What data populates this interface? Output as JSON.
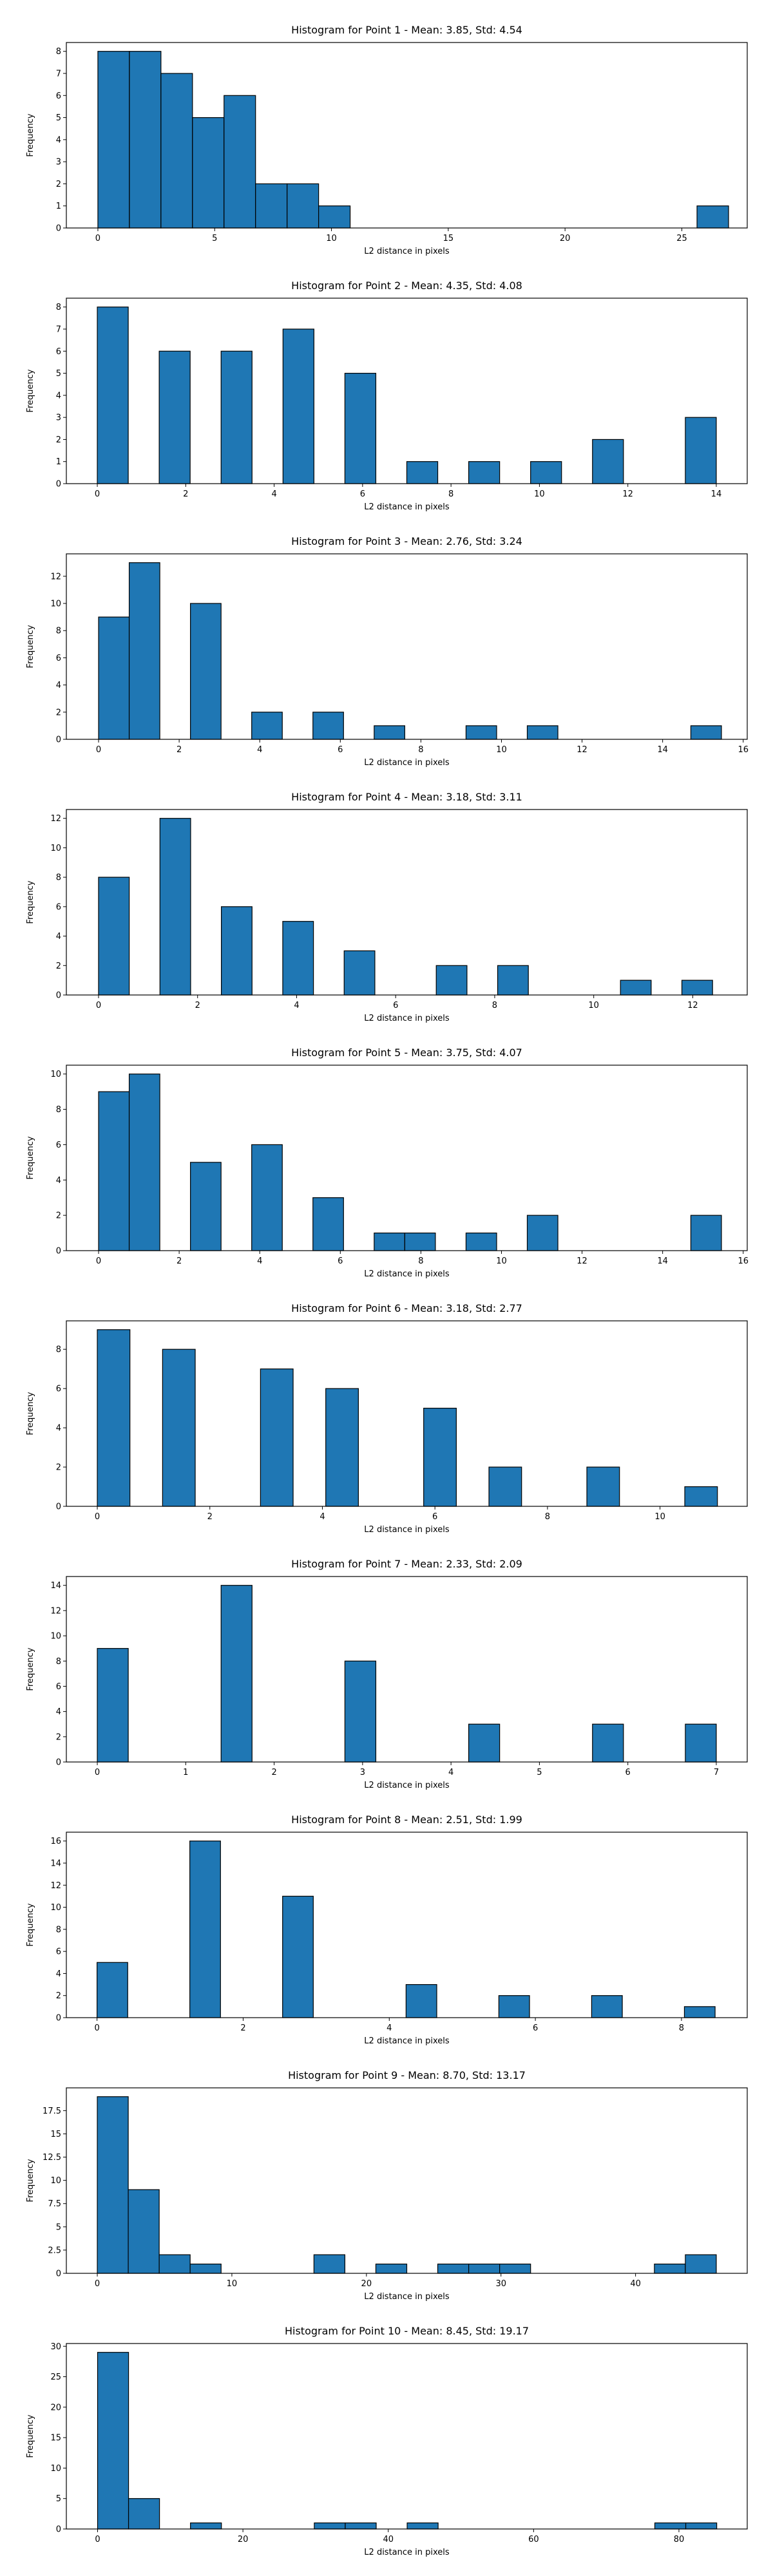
{
  "chart_data": [
    {
      "type": "bar",
      "title": "Histogram for Point 1 - Mean: 3.85, Std: 4.54",
      "xlabel": "L2 distance in pixels",
      "ylabel": "Frequency",
      "xlim": [
        -1.35,
        27.8
      ],
      "ylim": [
        0,
        8.4
      ],
      "xticks": [
        0,
        5,
        10,
        15,
        20,
        25
      ],
      "yticks": [
        0,
        1,
        2,
        3,
        4,
        5,
        6,
        7,
        8
      ],
      "bins": [
        [
          0,
          1.35,
          8
        ],
        [
          1.35,
          2.7,
          8
        ],
        [
          2.7,
          4.05,
          7
        ],
        [
          4.05,
          5.4,
          5
        ],
        [
          5.4,
          6.75,
          6
        ],
        [
          6.75,
          8.1,
          2
        ],
        [
          8.1,
          9.45,
          2
        ],
        [
          9.45,
          10.8,
          1
        ],
        [
          25.65,
          27.0,
          1
        ]
      ]
    },
    {
      "type": "bar",
      "title": "Histogram for Point 2 - Mean: 4.35, Std: 4.08",
      "xlabel": "L2 distance in pixels",
      "ylabel": "Frequency",
      "xlim": [
        -0.7,
        14.7
      ],
      "ylim": [
        0,
        8.4
      ],
      "xticks": [
        0,
        2,
        4,
        6,
        8,
        10,
        12,
        14
      ],
      "yticks": [
        0,
        1,
        2,
        3,
        4,
        5,
        6,
        7,
        8
      ],
      "bins": [
        [
          0,
          0.7,
          8
        ],
        [
          1.4,
          2.1,
          6
        ],
        [
          2.8,
          3.5,
          6
        ],
        [
          4.2,
          4.9,
          7
        ],
        [
          5.6,
          6.3,
          5
        ],
        [
          7.0,
          7.7,
          1
        ],
        [
          8.4,
          9.1,
          1
        ],
        [
          9.8,
          10.5,
          1
        ],
        [
          11.2,
          11.9,
          2
        ],
        [
          13.3,
          14.0,
          3
        ]
      ]
    },
    {
      "type": "bar",
      "title": "Histogram for Point 3 - Mean: 2.76, Std: 3.24",
      "xlabel": "L2 distance in pixels",
      "ylabel": "Frequency",
      "xlim": [
        -0.8,
        16.1
      ],
      "ylim": [
        0,
        13.65
      ],
      "xticks": [
        0,
        2,
        4,
        6,
        8,
        10,
        12,
        14,
        16
      ],
      "yticks": [
        0,
        2,
        4,
        6,
        8,
        10,
        12
      ],
      "bins": [
        [
          0,
          0.76,
          9
        ],
        [
          0.76,
          1.52,
          13
        ],
        [
          2.28,
          3.04,
          10
        ],
        [
          3.8,
          4.56,
          2
        ],
        [
          5.32,
          6.08,
          2
        ],
        [
          6.84,
          7.6,
          1
        ],
        [
          9.12,
          9.88,
          1
        ],
        [
          10.64,
          11.4,
          1
        ],
        [
          14.7,
          15.46,
          1
        ]
      ]
    },
    {
      "type": "bar",
      "title": "Histogram for Point 4 - Mean: 3.18, Std: 3.11",
      "xlabel": "L2 distance in pixels",
      "ylabel": "Frequency",
      "xlim": [
        -0.65,
        13.1
      ],
      "ylim": [
        0,
        12.6
      ],
      "xticks": [
        0,
        2,
        4,
        6,
        8,
        10,
        12
      ],
      "yticks": [
        0,
        2,
        4,
        6,
        8,
        10,
        12
      ],
      "bins": [
        [
          0,
          0.62,
          8
        ],
        [
          1.24,
          1.86,
          12
        ],
        [
          2.48,
          3.1,
          6
        ],
        [
          3.72,
          4.34,
          5
        ],
        [
          4.96,
          5.58,
          3
        ],
        [
          6.82,
          7.44,
          2
        ],
        [
          8.06,
          8.68,
          2
        ],
        [
          10.54,
          11.16,
          1
        ],
        [
          11.78,
          12.4,
          1
        ]
      ]
    },
    {
      "type": "bar",
      "title": "Histogram for Point 5 - Mean: 3.75, Std: 4.07",
      "xlabel": "L2 distance in pixels",
      "ylabel": "Frequency",
      "xlim": [
        -0.8,
        16.1
      ],
      "ylim": [
        0,
        10.5
      ],
      "xticks": [
        0,
        2,
        4,
        6,
        8,
        10,
        12,
        14,
        16
      ],
      "yticks": [
        0,
        2,
        4,
        6,
        8,
        10
      ],
      "bins": [
        [
          0,
          0.76,
          9
        ],
        [
          0.76,
          1.52,
          10
        ],
        [
          2.28,
          3.04,
          5
        ],
        [
          3.8,
          4.56,
          6
        ],
        [
          5.32,
          6.08,
          3
        ],
        [
          6.84,
          7.6,
          1
        ],
        [
          7.6,
          8.36,
          1
        ],
        [
          9.12,
          9.88,
          1
        ],
        [
          10.64,
          11.4,
          2
        ],
        [
          14.7,
          15.46,
          2
        ]
      ]
    },
    {
      "type": "bar",
      "title": "Histogram for Point 6 - Mean: 3.18, Std: 2.77",
      "xlabel": "L2 distance in pixels",
      "ylabel": "Frequency",
      "xlim": [
        -0.55,
        11.55
      ],
      "ylim": [
        0,
        9.45
      ],
      "xticks": [
        0,
        2,
        4,
        6,
        8,
        10
      ],
      "yticks": [
        0,
        2,
        4,
        6,
        8
      ],
      "bins": [
        [
          0,
          0.58,
          9
        ],
        [
          1.16,
          1.74,
          8
        ],
        [
          2.9,
          3.48,
          7
        ],
        [
          4.06,
          4.64,
          6
        ],
        [
          5.8,
          6.38,
          5
        ],
        [
          6.96,
          7.54,
          2
        ],
        [
          8.7,
          9.28,
          2
        ],
        [
          10.44,
          11.02,
          1
        ]
      ]
    },
    {
      "type": "bar",
      "title": "Histogram for Point 7 - Mean: 2.33, Std: 2.09",
      "xlabel": "L2 distance in pixels",
      "ylabel": "Frequency",
      "xlim": [
        -0.35,
        7.35
      ],
      "ylim": [
        0,
        14.7
      ],
      "xticks": [
        0,
        1,
        2,
        3,
        4,
        5,
        6,
        7
      ],
      "yticks": [
        0,
        2,
        4,
        6,
        8,
        10,
        12,
        14
      ],
      "bins": [
        [
          0,
          0.35,
          9
        ],
        [
          1.4,
          1.75,
          14
        ],
        [
          2.8,
          3.15,
          8
        ],
        [
          4.2,
          4.55,
          3
        ],
        [
          5.6,
          5.95,
          3
        ],
        [
          6.65,
          7.0,
          3
        ]
      ]
    },
    {
      "type": "bar",
      "title": "Histogram for Point 8 - Mean: 2.51, Std: 1.99",
      "xlabel": "L2 distance in pixels",
      "ylabel": "Frequency",
      "xlim": [
        -0.42,
        8.9
      ],
      "ylim": [
        0,
        16.8
      ],
      "xticks": [
        0,
        2,
        4,
        6,
        8
      ],
      "yticks": [
        0,
        2,
        4,
        6,
        8,
        10,
        12,
        14,
        16
      ],
      "bins": [
        [
          0,
          0.42,
          5
        ],
        [
          1.27,
          1.69,
          16
        ],
        [
          2.54,
          2.96,
          11
        ],
        [
          4.23,
          4.65,
          3
        ],
        [
          5.5,
          5.92,
          2
        ],
        [
          6.77,
          7.19,
          2
        ],
        [
          8.04,
          8.46,
          1
        ]
      ]
    },
    {
      "type": "bar",
      "title": "Histogram for Point 9 - Mean: 8.70, Std: 13.17",
      "xlabel": "L2 distance in pixels",
      "ylabel": "Frequency",
      "xlim": [
        -2.3,
        48.3
      ],
      "ylim": [
        0,
        19.95
      ],
      "xticks": [
        0,
        10,
        20,
        30,
        40
      ],
      "yticks": [
        0,
        2.5,
        5.0,
        7.5,
        10.0,
        12.5,
        15.0,
        17.5
      ],
      "bins": [
        [
          0,
          2.3,
          19
        ],
        [
          2.3,
          4.6,
          9
        ],
        [
          4.6,
          6.9,
          2
        ],
        [
          6.9,
          9.2,
          1
        ],
        [
          16.1,
          18.4,
          2
        ],
        [
          20.7,
          23.0,
          1
        ],
        [
          25.3,
          27.6,
          1
        ],
        [
          27.6,
          29.9,
          1
        ],
        [
          29.9,
          32.2,
          1
        ],
        [
          41.4,
          43.7,
          1
        ],
        [
          43.7,
          46.0,
          2
        ]
      ]
    },
    {
      "type": "bar",
      "title": "Histogram for Point 10 - Mean: 8.45, Std: 19.17",
      "xlabel": "L2 distance in pixels",
      "ylabel": "Frequency",
      "xlim": [
        -4.3,
        89.4
      ],
      "ylim": [
        0,
        30.45
      ],
      "xticks": [
        0,
        20,
        40,
        60,
        80
      ],
      "yticks": [
        0,
        5,
        10,
        15,
        20,
        25,
        30
      ],
      "bins": [
        [
          0,
          4.26,
          29
        ],
        [
          4.26,
          8.52,
          5
        ],
        [
          12.78,
          17.04,
          1
        ],
        [
          29.82,
          34.08,
          1
        ],
        [
          34.08,
          38.34,
          1
        ],
        [
          42.6,
          46.86,
          1
        ],
        [
          76.68,
          80.94,
          1
        ],
        [
          80.94,
          85.2,
          1
        ]
      ]
    }
  ],
  "colors": {
    "bar_fill": "#1f77b4",
    "bar_edge": "#000000",
    "axes": "#000000"
  }
}
